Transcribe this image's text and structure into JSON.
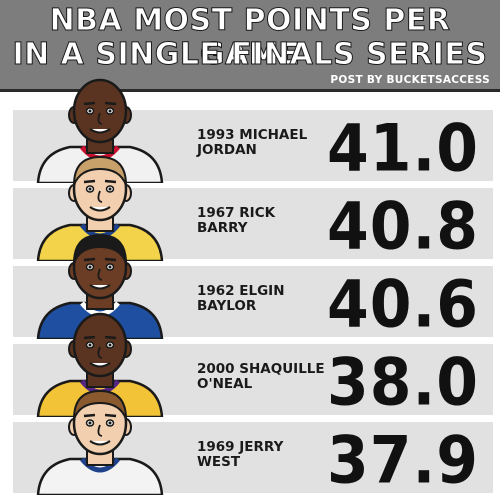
{
  "header": {
    "title_line1": "NBA MOST POINTS PER GAME",
    "title_line2": "IN A SINGLE FINALS SERIES",
    "credit": "POST BY BUCKETSACCESS"
  },
  "rows": [
    {
      "label_line1": "1993 MICHAEL",
      "label_line2": "JORDAN",
      "value": "41.0",
      "jersey": "#f1f1f1",
      "trim": "#c8102e",
      "skin": "#5a3420",
      "hair": "none"
    },
    {
      "label_line1": "1967 RICK",
      "label_line2": "BARRY",
      "value": "40.8",
      "jersey": "#f3d34a",
      "trim": "#1d428a",
      "skin": "#f2cfae",
      "hair": "#c8a06a"
    },
    {
      "label_line1": "1962 ELGIN",
      "label_line2": "BAYLOR",
      "value": "40.6",
      "jersey": "#1f4fa0",
      "trim": "#ffffff",
      "skin": "#6b3d24",
      "hair": "#1a1a1a"
    },
    {
      "label_line1": "2000 SHAQUILLE",
      "label_line2": "O'NEAL",
      "value": "38.0",
      "jersey": "#f2c237",
      "trim": "#552583",
      "skin": "#5a3420",
      "hair": "none"
    },
    {
      "label_line1": "1969 JERRY",
      "label_line2": "WEST",
      "value": "37.9",
      "jersey": "#f3f3f3",
      "trim": "#1d428a",
      "skin": "#f2cfae",
      "hair": "#8a5a2e"
    }
  ]
}
